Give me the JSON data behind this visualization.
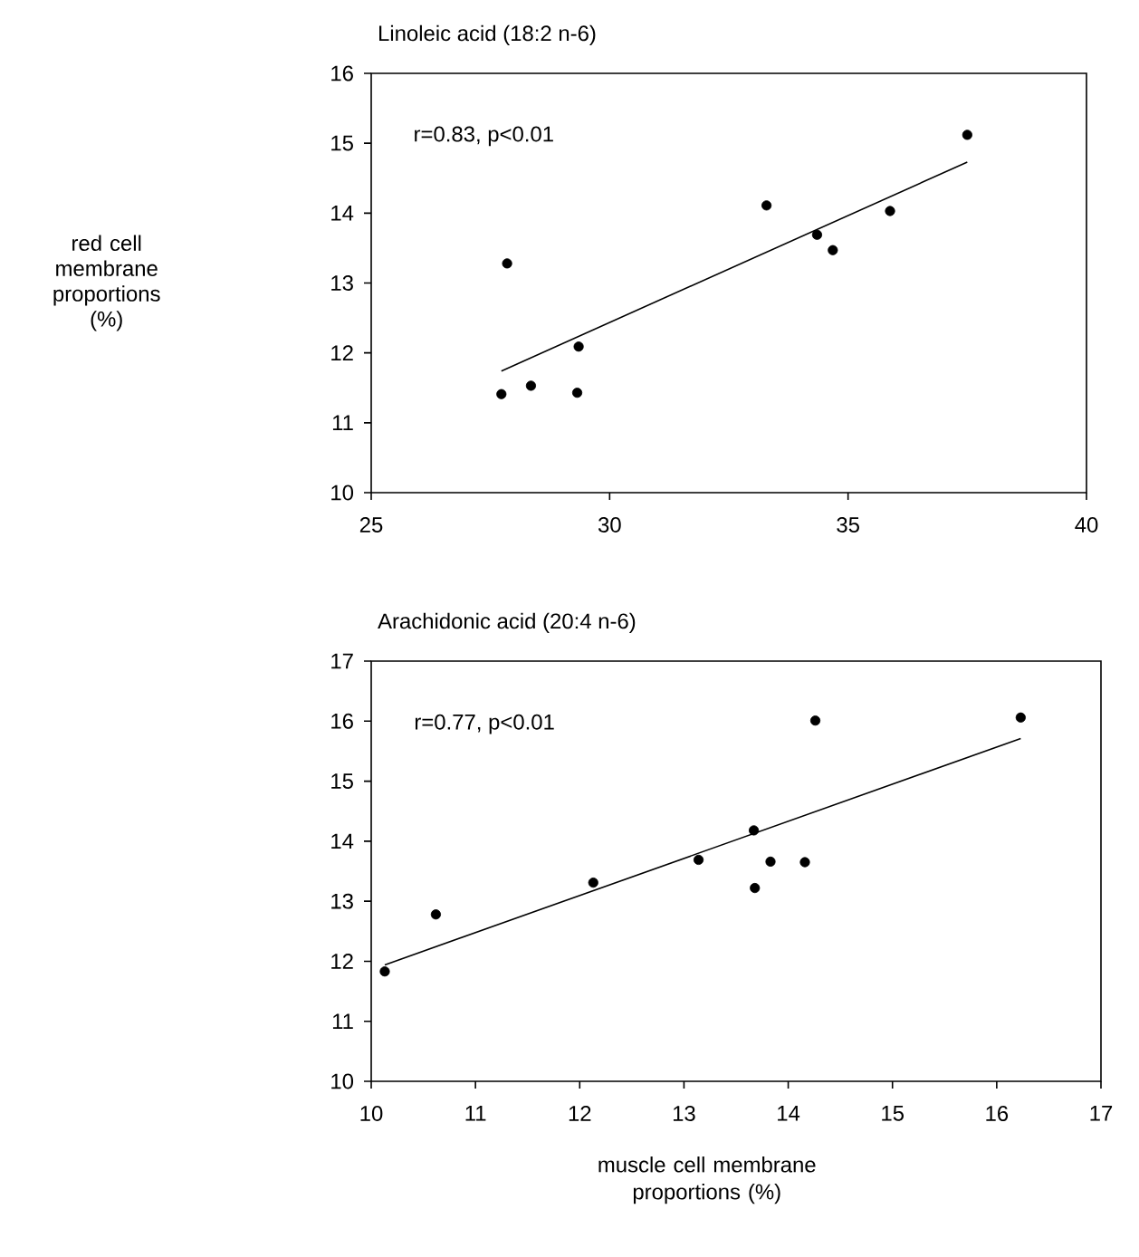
{
  "chart_data": [
    {
      "type": "scatter",
      "title": "Linoleic acid (18:2 n-6)",
      "ylabel": "red cell membrane proportions (%)",
      "xlim": [
        25,
        40
      ],
      "ylim": [
        10,
        16
      ],
      "xticks": [
        25,
        30,
        35,
        40
      ],
      "yticks": [
        10,
        11,
        12,
        13,
        14,
        15,
        16
      ],
      "annotations": [
        "r=0.83, p<0.01"
      ],
      "series": [
        {
          "type": "scatter",
          "color": "#000000",
          "marker": "circle",
          "x": [
            27.73,
            27.85,
            28.35,
            29.32,
            29.35,
            33.29,
            34.35,
            34.68,
            35.88,
            37.5
          ],
          "values": [
            11.41,
            13.28,
            11.53,
            11.43,
            12.09,
            14.11,
            13.69,
            13.47,
            14.03,
            15.12
          ]
        },
        {
          "type": "line",
          "color": "#000000",
          "marker": "none",
          "x": [
            27.73,
            37.5
          ],
          "values": [
            11.74,
            14.73
          ]
        }
      ]
    },
    {
      "type": "scatter",
      "title": "Arachidonic acid (20:4 n-6)",
      "xlabel": "muscle cell membrane proportions (%)",
      "xlim": [
        10,
        17
      ],
      "ylim": [
        10,
        17
      ],
      "xticks": [
        10,
        11,
        12,
        13,
        14,
        15,
        16,
        17
      ],
      "yticks": [
        10,
        11,
        12,
        13,
        14,
        15,
        16,
        17
      ],
      "annotations": [
        "r=0.77, p<0.01"
      ],
      "series": [
        {
          "type": "scatter",
          "color": "#000000",
          "marker": "circle",
          "x": [
            10.13,
            10.62,
            12.13,
            13.14,
            13.67,
            13.68,
            13.83,
            14.16,
            14.26,
            16.23
          ],
          "values": [
            11.83,
            12.78,
            13.31,
            13.69,
            14.18,
            13.22,
            13.66,
            13.65,
            16.01,
            16.06
          ]
        },
        {
          "type": "line",
          "color": "#000000",
          "marker": "none",
          "x": [
            10.13,
            16.23
          ],
          "values": [
            11.94,
            15.71
          ]
        }
      ]
    }
  ]
}
